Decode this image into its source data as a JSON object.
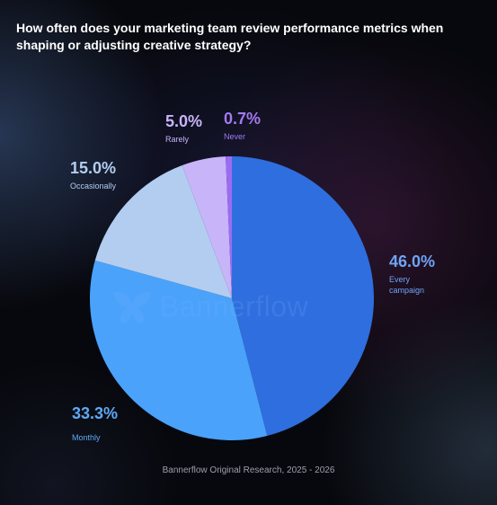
{
  "title": "How often does your marketing team review performance metrics when shaping or adjusting creative strategy?",
  "watermark": "Bannerflow",
  "source": "Bannerflow Original Research, 2025 - 2026",
  "chart_data": {
    "type": "pie",
    "title": "How often does your marketing team review performance metrics when shaping or adjusting creative strategy?",
    "slices": [
      {
        "label": "Every campaign",
        "value": 46.0,
        "pct_label": "46.0%",
        "color": "#2f6ede",
        "label_color": "#6fa4f5"
      },
      {
        "label": "Monthly",
        "value": 33.3,
        "pct_label": "33.3%",
        "color": "#4aa2fb",
        "label_color": "#5ea9f6"
      },
      {
        "label": "Occasionally",
        "value": 15.0,
        "pct_label": "15.0%",
        "color": "#b3cdf0",
        "label_color": "#b3cdf0"
      },
      {
        "label": "Rarely",
        "value": 5.0,
        "pct_label": "5.0%",
        "color": "#c8b4f9",
        "label_color": "#c8b4f9"
      },
      {
        "label": "Never",
        "value": 0.7,
        "pct_label": "0.7%",
        "color": "#9b6cf2",
        "label_color": "#a27af0"
      }
    ]
  }
}
